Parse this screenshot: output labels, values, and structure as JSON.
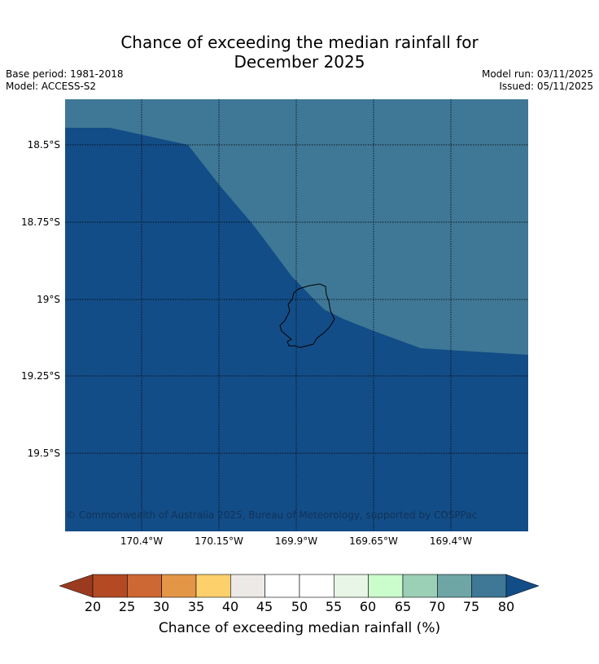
{
  "title": {
    "line1": "Chance of exceeding the median rainfall for",
    "line2": "December 2025"
  },
  "meta": {
    "base_period": "Base period: 1981-2018",
    "model": "Model: ACCESS-S2",
    "model_run": "Model run: 03/11/2025",
    "issued": "Issued: 05/11/2025"
  },
  "map": {
    "latitude_labels": [
      "18.5°S",
      "18.75°S",
      "19°S",
      "19.25°S",
      "19.5°S"
    ],
    "longitude_labels": [
      "170.4°W",
      "170.15°W",
      "169.9°W",
      "169.65°W",
      "169.4°W"
    ],
    "copyright": "© Commonwealth of Australia 2025, Bureau of Meteorology, supported by COSPPac",
    "regions": [
      {
        "name": "75-80%",
        "color": "#3f7896"
      },
      {
        "name": ">80%",
        "color": "#134d87"
      }
    ],
    "gridline_color": "#000000",
    "island_outline_color": "#000000"
  },
  "colorbar": {
    "ticks": [
      "20",
      "25",
      "30",
      "35",
      "40",
      "45",
      "50",
      "55",
      "60",
      "65",
      "70",
      "75",
      "80"
    ],
    "under_color": "#9a3a1e",
    "over_color": "#134d87",
    "segment_colors": [
      "#b34a24",
      "#cd6734",
      "#e39646",
      "#fdd06c",
      "#ede9e6",
      "#ffffff",
      "#ffffff",
      "#e8f6e8",
      "#cbfccb",
      "#9bcfb6",
      "#6ea6a6",
      "#3f7896"
    ],
    "label": "Chance of exceeding median rainfall (%)"
  }
}
